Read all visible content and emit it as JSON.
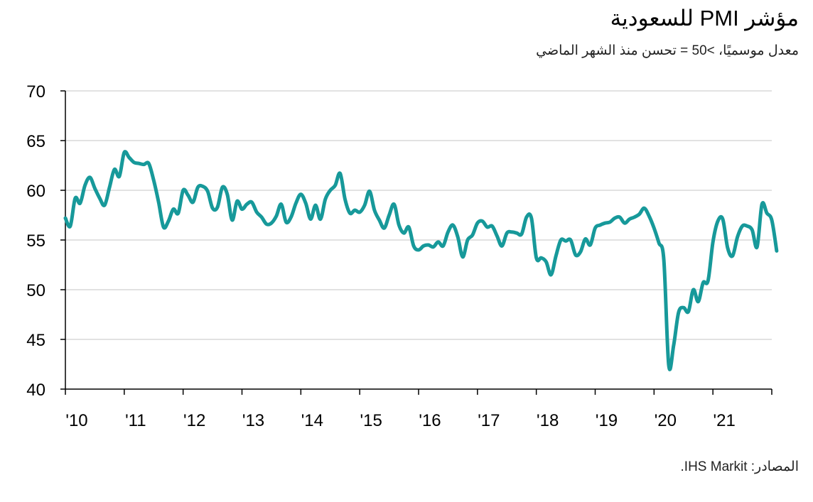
{
  "header": {
    "title": "مؤشر PMI للسعودية",
    "subtitle": "معدل موسميًا، >50 = تحسن منذ الشهر الماضي"
  },
  "footer": {
    "source": "المصادر: IHS Markit."
  },
  "colors": {
    "line": "#17999a",
    "grid": "#d9d9d9",
    "axis": "#000000"
  },
  "chart_data": {
    "type": "line",
    "title": "مؤشر PMI للسعودية",
    "subtitle": "معدل موسميًا، >50 = تحسن منذ الشهر الماضي",
    "ylim": [
      40,
      70
    ],
    "y_ticks": [
      40,
      45,
      50,
      55,
      60,
      65,
      70
    ],
    "x_tick_labels": [
      "'10",
      "'11",
      "'12",
      "'13",
      "'14",
      "'15",
      "'16",
      "'17",
      "'18",
      "'19",
      "'20",
      "'21"
    ],
    "x_start_year": 2010,
    "x_end_year": 2022,
    "grid": true,
    "series": [
      {
        "points_per_year": 12,
        "values": [
          57.2,
          56.4,
          59.2,
          58.7,
          60.5,
          61.3,
          60.2,
          59.2,
          58.5,
          60.3,
          62.1,
          61.4,
          63.8,
          63.3,
          62.8,
          62.7,
          62.6,
          62.7,
          61.0,
          58.8,
          56.3,
          56.9,
          58.1,
          57.7,
          60.0,
          59.5,
          58.8,
          60.3,
          60.4,
          59.9,
          58.2,
          58.3,
          60.3,
          59.6,
          57.0,
          58.9,
          58.1,
          58.6,
          58.8,
          57.8,
          57.3,
          56.6,
          56.7,
          57.4,
          58.6,
          56.8,
          57.3,
          58.7,
          59.6,
          58.7,
          57.1,
          58.5,
          57.1,
          59.1,
          60.0,
          60.5,
          61.7,
          59.1,
          57.7,
          58.0,
          57.8,
          58.5,
          59.9,
          58.0,
          57.0,
          56.2,
          57.5,
          58.6,
          56.5,
          55.7,
          56.3,
          54.4,
          54.0,
          54.4,
          54.5,
          54.3,
          54.8,
          54.4,
          55.8,
          56.5,
          55.3,
          53.3,
          55.0,
          55.5,
          56.7,
          56.9,
          56.3,
          56.4,
          55.4,
          54.4,
          55.7,
          55.8,
          55.7,
          55.6,
          57.3,
          57.2,
          53.2,
          53.2,
          52.8,
          51.5,
          53.4,
          55.0,
          54.9,
          55.0,
          53.5,
          53.8,
          55.1,
          54.5,
          56.2,
          56.5,
          56.7,
          56.8,
          57.2,
          57.3,
          56.7,
          57.1,
          57.3,
          57.6,
          58.2,
          57.4,
          56.2,
          54.7,
          53.0,
          42.4,
          44.4,
          47.7,
          48.2,
          47.8,
          50.0,
          48.8,
          50.7,
          50.9,
          54.8,
          56.9,
          57.1,
          54.2,
          53.4,
          55.3,
          56.4,
          56.4,
          56.0,
          54.3,
          58.6,
          57.7,
          57.0,
          53.9
        ]
      }
    ]
  }
}
